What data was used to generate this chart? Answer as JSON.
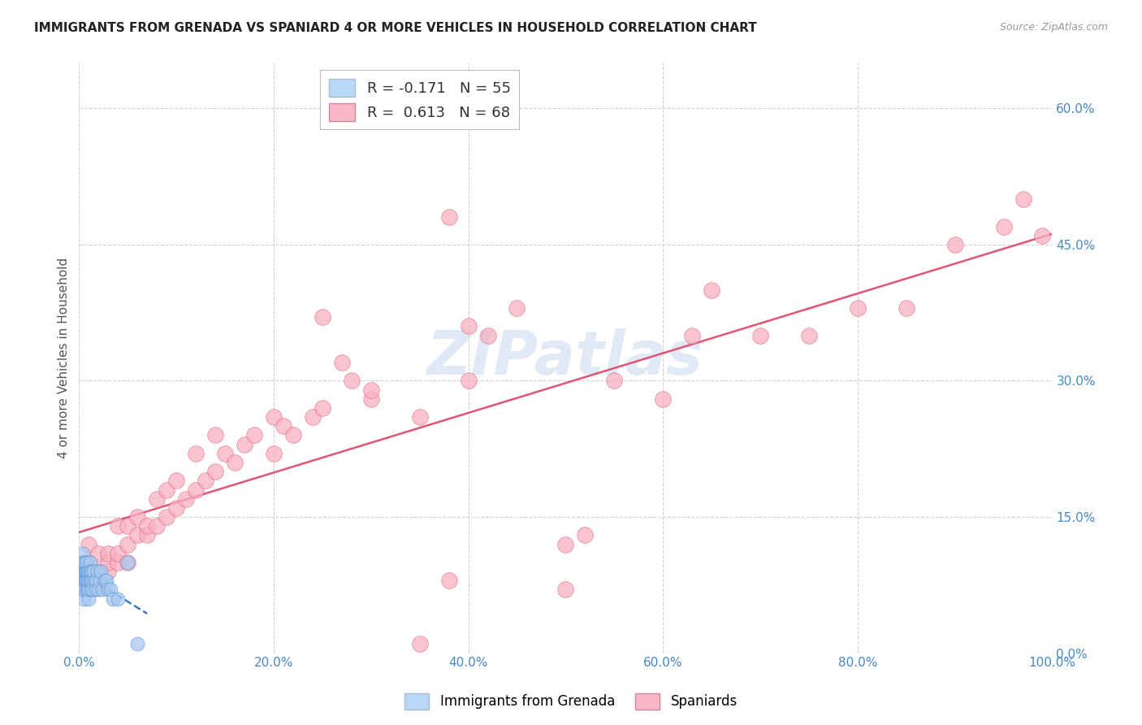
{
  "title": "IMMIGRANTS FROM GRENADA VS SPANIARD 4 OR MORE VEHICLES IN HOUSEHOLD CORRELATION CHART",
  "source": "Source: ZipAtlas.com",
  "ylabel": "4 or more Vehicles in Household",
  "ylim": [
    0.0,
    0.65
  ],
  "xlim": [
    0.0,
    1.0
  ],
  "ytick_positions": [
    0.0,
    0.15,
    0.3,
    0.45,
    0.6
  ],
  "xtick_positions": [
    0.0,
    0.2,
    0.4,
    0.6,
    0.8,
    1.0
  ],
  "grenada_color": "#a8c8f0",
  "grenada_edge": "#5590cc",
  "grenada_line_color": "#4477bb",
  "spaniard_color": "#f8b0c0",
  "spaniard_edge": "#e06080",
  "spaniard_line_color": "#e05575",
  "watermark": "ZIPatlas",
  "watermark_color": "#ccddf0",
  "background_color": "#ffffff",
  "grid_color": "#cccccc",
  "axis_tick_color": "#4488cc",
  "ylabel_color": "#555555",
  "title_color": "#222222",
  "source_color": "#999999",
  "legend1_label": "R = -0.171   N = 55",
  "legend2_label": "R =  0.613   N = 68",
  "legend1_facecolor": "#b8d8f8",
  "legend2_facecolor": "#f8b8c8",
  "bottom_legend_labels": [
    "Immigrants from Grenada",
    "Spaniards"
  ],
  "spaniard_x": [
    0.01,
    0.01,
    0.02,
    0.02,
    0.02,
    0.03,
    0.03,
    0.03,
    0.04,
    0.04,
    0.04,
    0.05,
    0.05,
    0.05,
    0.06,
    0.06,
    0.07,
    0.07,
    0.08,
    0.08,
    0.09,
    0.09,
    0.1,
    0.1,
    0.11,
    0.12,
    0.12,
    0.13,
    0.14,
    0.14,
    0.15,
    0.16,
    0.17,
    0.18,
    0.2,
    0.2,
    0.21,
    0.22,
    0.24,
    0.25,
    0.27,
    0.28,
    0.3,
    0.35,
    0.38,
    0.4,
    0.42,
    0.45,
    0.5,
    0.52,
    0.55,
    0.6,
    0.63,
    0.65,
    0.7,
    0.75,
    0.8,
    0.85,
    0.9,
    0.95,
    0.97,
    0.99,
    0.4,
    0.38,
    0.25,
    0.3,
    0.5,
    0.35
  ],
  "spaniard_y": [
    0.1,
    0.12,
    0.08,
    0.09,
    0.11,
    0.09,
    0.1,
    0.11,
    0.1,
    0.11,
    0.14,
    0.1,
    0.12,
    0.14,
    0.13,
    0.15,
    0.13,
    0.14,
    0.14,
    0.17,
    0.15,
    0.18,
    0.16,
    0.19,
    0.17,
    0.18,
    0.22,
    0.19,
    0.2,
    0.24,
    0.22,
    0.21,
    0.23,
    0.24,
    0.22,
    0.26,
    0.25,
    0.24,
    0.26,
    0.27,
    0.32,
    0.3,
    0.28,
    0.26,
    0.08,
    0.3,
    0.35,
    0.38,
    0.12,
    0.13,
    0.3,
    0.28,
    0.35,
    0.4,
    0.35,
    0.35,
    0.38,
    0.38,
    0.45,
    0.47,
    0.5,
    0.46,
    0.36,
    0.48,
    0.37,
    0.29,
    0.07,
    0.01
  ],
  "grenada_x": [
    0.001,
    0.002,
    0.002,
    0.003,
    0.003,
    0.003,
    0.004,
    0.004,
    0.005,
    0.005,
    0.005,
    0.005,
    0.006,
    0.006,
    0.006,
    0.007,
    0.007,
    0.007,
    0.008,
    0.008,
    0.008,
    0.009,
    0.009,
    0.009,
    0.01,
    0.01,
    0.01,
    0.01,
    0.011,
    0.011,
    0.011,
    0.012,
    0.012,
    0.012,
    0.013,
    0.013,
    0.014,
    0.015,
    0.015,
    0.016,
    0.017,
    0.018,
    0.019,
    0.02,
    0.021,
    0.022,
    0.024,
    0.026,
    0.028,
    0.03,
    0.032,
    0.035,
    0.04,
    0.05,
    0.06
  ],
  "grenada_y": [
    0.08,
    0.09,
    0.1,
    0.07,
    0.08,
    0.09,
    0.1,
    0.11,
    0.06,
    0.07,
    0.09,
    0.1,
    0.08,
    0.09,
    0.1,
    0.07,
    0.08,
    0.09,
    0.08,
    0.09,
    0.1,
    0.07,
    0.08,
    0.09,
    0.06,
    0.07,
    0.08,
    0.09,
    0.08,
    0.09,
    0.1,
    0.07,
    0.08,
    0.09,
    0.08,
    0.09,
    0.07,
    0.08,
    0.09,
    0.08,
    0.07,
    0.08,
    0.09,
    0.07,
    0.08,
    0.09,
    0.07,
    0.08,
    0.08,
    0.07,
    0.07,
    0.06,
    0.06,
    0.1,
    0.01
  ]
}
